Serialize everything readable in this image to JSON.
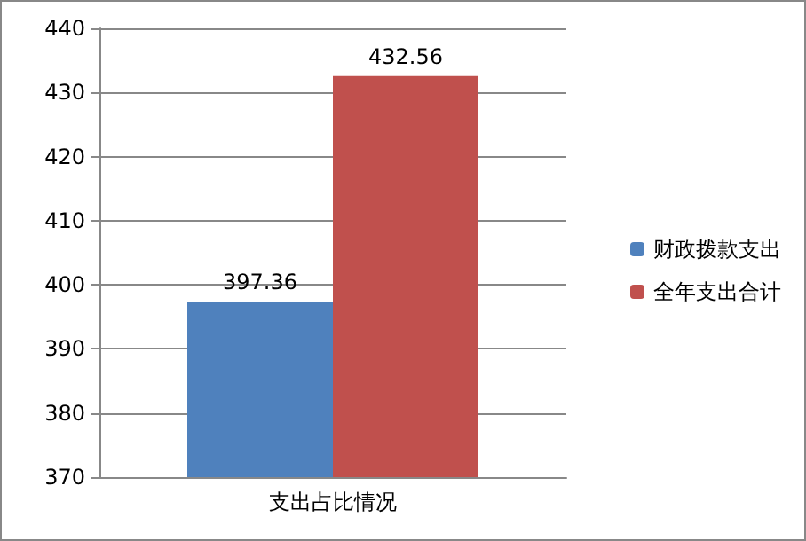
{
  "chart_data": {
    "type": "bar",
    "categories": [
      "支出占比情况"
    ],
    "series": [
      {
        "name": "财政拨款支出",
        "color": "#4f81bd",
        "values": [
          397.36
        ]
      },
      {
        "name": "全年支出合计",
        "color": "#c0504d",
        "values": [
          432.56
        ]
      }
    ],
    "ylim": [
      370,
      440
    ],
    "yticks": [
      370,
      380,
      390,
      400,
      410,
      420,
      430,
      440
    ],
    "grid": "y",
    "legend": "right",
    "data_labels": true
  }
}
